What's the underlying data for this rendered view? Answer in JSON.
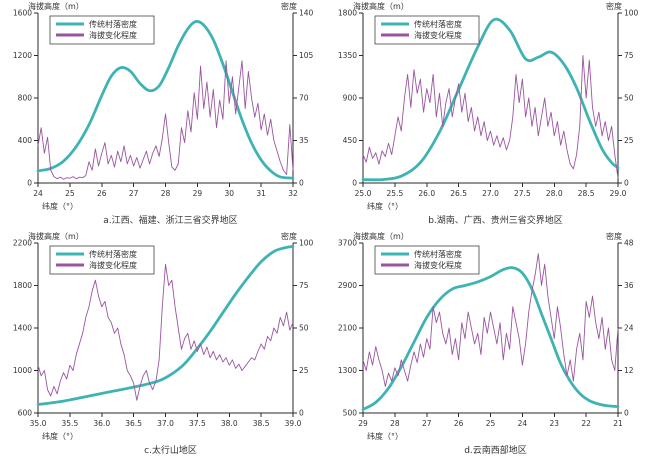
{
  "figure": {
    "background": "#ffffff"
  },
  "colors": {
    "density_line": "#3fb3b4",
    "relief_line": "#9a55a0",
    "axis": "#2a2a2a",
    "text": "#333333",
    "legend_border": "#444444"
  },
  "legend": {
    "density_label": "传统村落密度",
    "relief_label": "海拔变化程度"
  },
  "axis_titles": {
    "left": "海拔高度（m）",
    "right": "密度",
    "x": "纬度（°）"
  },
  "chart_data": [
    {
      "type": "line",
      "caption": "a.江西、福建、浙江三省交界地区",
      "x_axis": {
        "label": "纬度（°）",
        "left_value": 24,
        "right_value": 32,
        "tick_values": [
          24,
          25,
          26,
          27,
          28,
          29,
          30,
          31,
          32
        ],
        "tick_labels": [
          "24",
          "25",
          "26",
          "27",
          "28",
          "29",
          "30",
          "31",
          "32"
        ]
      },
      "left_axis": {
        "label": "海拔高度（m）",
        "min": 0,
        "max": 1600,
        "tick_values": [
          0,
          400,
          800,
          1200,
          1600
        ],
        "tick_labels": [
          "0",
          "400",
          "800",
          "1200",
          "1600"
        ]
      },
      "right_axis": {
        "label": "密度",
        "min": 0,
        "max": 140,
        "tick_values": [
          0,
          35,
          70,
          105,
          140
        ],
        "tick_labels": [
          "0",
          "35",
          "70",
          "105",
          "140"
        ]
      },
      "series": [
        {
          "name": "传统村落密度",
          "axis": "right",
          "style": "smooth",
          "color_key": "density_line",
          "points": [
            [
              24,
              10
            ],
            [
              24.4,
              12
            ],
            [
              24.8,
              18
            ],
            [
              25.2,
              30
            ],
            [
              25.6,
              48
            ],
            [
              26,
              72
            ],
            [
              26.3,
              88
            ],
            [
              26.6,
              95
            ],
            [
              26.9,
              92
            ],
            [
              27.2,
              82
            ],
            [
              27.5,
              76
            ],
            [
              27.8,
              80
            ],
            [
              28.1,
              95
            ],
            [
              28.4,
              113
            ],
            [
              28.7,
              127
            ],
            [
              28.95,
              133
            ],
            [
              29.2,
              130
            ],
            [
              29.5,
              118
            ],
            [
              29.8,
              98
            ],
            [
              30.1,
              75
            ],
            [
              30.4,
              52
            ],
            [
              30.7,
              33
            ],
            [
              31,
              19
            ],
            [
              31.3,
              10
            ],
            [
              31.6,
              5
            ],
            [
              32,
              4
            ]
          ]
        },
        {
          "name": "海拔变化程度",
          "axis": "left",
          "style": "noisy",
          "color_key": "relief_line",
          "x_start": 24,
          "x_step": 0.1,
          "values": [
            350,
            520,
            280,
            430,
            120,
            60,
            40,
            55,
            35,
            50,
            45,
            60,
            40,
            55,
            50,
            70,
            200,
            120,
            320,
            160,
            280,
            380,
            180,
            260,
            150,
            300,
            200,
            350,
            180,
            260,
            160,
            240,
            140,
            220,
            300,
            180,
            280,
            350,
            250,
            420,
            650,
            380,
            150,
            120,
            180,
            520,
            380,
            680,
            480,
            850,
            600,
            1100,
            700,
            950,
            620,
            880,
            520,
            780,
            600,
            1150,
            750,
            1000,
            650,
            900,
            1150,
            700,
            1050,
            800,
            620,
            750,
            500,
            650,
            450,
            600,
            400,
            300,
            200,
            120,
            80,
            550,
            120
          ]
        }
      ]
    },
    {
      "type": "line",
      "caption": "b.湖南、广西、贵州三省交界地区",
      "x_axis": {
        "label": "纬度（°）",
        "left_value": 25,
        "right_value": 29,
        "tick_values": [
          25,
          25.5,
          26,
          26.5,
          27,
          27.5,
          28,
          28.5,
          29
        ],
        "tick_labels": [
          "25.0",
          "25.5",
          "26.0",
          "26.5",
          "27.0",
          "27.5",
          "28.0",
          "28.5",
          "29.0"
        ]
      },
      "left_axis": {
        "label": "海拔高度（m）",
        "min": 0,
        "max": 1800,
        "tick_values": [
          0,
          450,
          900,
          1350,
          1800
        ],
        "tick_labels": [
          "0",
          "450",
          "900",
          "1350",
          "1800"
        ]
      },
      "right_axis": {
        "label": "密度",
        "min": 0,
        "max": 100,
        "tick_values": [
          0,
          25,
          50,
          75,
          100
        ],
        "tick_labels": [
          "0",
          "25",
          "50",
          "75",
          "100"
        ]
      },
      "series": [
        {
          "name": "传统村落密度",
          "axis": "right",
          "style": "smooth",
          "color_key": "density_line",
          "points": [
            [
              25,
              2
            ],
            [
              25.3,
              2
            ],
            [
              25.6,
              4
            ],
            [
              25.9,
              12
            ],
            [
              26.2,
              30
            ],
            [
              26.5,
              55
            ],
            [
              26.8,
              80
            ],
            [
              27.05,
              96
            ],
            [
              27.3,
              90
            ],
            [
              27.55,
              73
            ],
            [
              27.75,
              74
            ],
            [
              27.95,
              77
            ],
            [
              28.15,
              70
            ],
            [
              28.35,
              56
            ],
            [
              28.55,
              37
            ],
            [
              28.75,
              20
            ],
            [
              28.9,
              12
            ],
            [
              29,
              9
            ]
          ]
        },
        {
          "name": "海拔变化程度",
          "axis": "left",
          "style": "noisy",
          "color_key": "relief_line",
          "x_start": 25,
          "x_step": 0.05,
          "values": [
            300,
            220,
            380,
            260,
            320,
            200,
            340,
            280,
            420,
            300,
            500,
            700,
            550,
            900,
            1150,
            800,
            1200,
            950,
            1100,
            750,
            1000,
            850,
            1150,
            700,
            950,
            600,
            850,
            1000,
            700,
            900,
            1050,
            750,
            950,
            650,
            800,
            550,
            700,
            500,
            650,
            450,
            550,
            400,
            500,
            380,
            480,
            350,
            450,
            700,
            1150,
            850,
            1100,
            700,
            900,
            600,
            800,
            500,
            700,
            900,
            600,
            750,
            500,
            650,
            400,
            550,
            350,
            200,
            150,
            300,
            600,
            1350,
            900,
            1300,
            800,
            600,
            750,
            500,
            650,
            450,
            600,
            300,
            50
          ]
        }
      ]
    },
    {
      "type": "line",
      "caption": "c.太行山地区",
      "x_axis": {
        "label": "纬度（°）",
        "left_value": 35,
        "right_value": 39,
        "tick_values": [
          35,
          35.5,
          36,
          36.5,
          37,
          37.5,
          38,
          38.5,
          39
        ],
        "tick_labels": [
          "35.0",
          "35.5",
          "36.0",
          "36.5",
          "37.0",
          "37.5",
          "38.0",
          "38.5",
          "39.0"
        ]
      },
      "left_axis": {
        "label": "海拔高度（m）",
        "min": 600,
        "max": 2200,
        "tick_values": [
          600,
          1000,
          1400,
          1800,
          2200
        ],
        "tick_labels": [
          "600",
          "1000",
          "1400",
          "1800",
          "2200"
        ]
      },
      "right_axis": {
        "label": "密度",
        "min": 0,
        "max": 100,
        "tick_values": [
          0,
          25,
          50,
          75,
          100
        ],
        "tick_labels": [
          "0",
          "25",
          "50",
          "75",
          "100"
        ]
      },
      "series": [
        {
          "name": "传统村落密度",
          "axis": "right",
          "style": "smooth",
          "color_key": "density_line",
          "points": [
            [
              35,
              5
            ],
            [
              35.4,
              7
            ],
            [
              35.8,
              10
            ],
            [
              36.2,
              13
            ],
            [
              36.6,
              16
            ],
            [
              36.9,
              19
            ],
            [
              37.1,
              23
            ],
            [
              37.3,
              29
            ],
            [
              37.5,
              38
            ],
            [
              37.7,
              48
            ],
            [
              37.9,
              59
            ],
            [
              38.1,
              70
            ],
            [
              38.3,
              80
            ],
            [
              38.5,
              89
            ],
            [
              38.7,
              95
            ],
            [
              38.85,
              97
            ],
            [
              39,
              98
            ]
          ]
        },
        {
          "name": "海拔变化程度",
          "axis": "left",
          "style": "noisy",
          "color_key": "relief_line",
          "x_start": 35,
          "x_step": 0.05,
          "values": [
            1050,
            950,
            1000,
            820,
            760,
            850,
            780,
            900,
            980,
            920,
            1050,
            1000,
            1150,
            1250,
            1350,
            1500,
            1600,
            1750,
            1850,
            1700,
            1600,
            1650,
            1500,
            1450,
            1350,
            1400,
            1250,
            1150,
            1000,
            950,
            880,
            720,
            850,
            950,
            1000,
            880,
            820,
            900,
            1100,
            1600,
            2000,
            1800,
            1850,
            1600,
            1400,
            1200,
            1300,
            1350,
            1200,
            1280,
            1180,
            1250,
            1150,
            1220,
            1120,
            1180,
            1100,
            1150,
            1080,
            1120,
            1050,
            1100,
            1020,
            1060,
            1000,
            1040,
            1080,
            1120,
            1100,
            1180,
            1250,
            1200,
            1320,
            1280,
            1400,
            1350,
            1500,
            1420,
            1550,
            1380,
            1450
          ]
        }
      ]
    },
    {
      "type": "line",
      "caption": "d.云南西部地区",
      "x_axis": {
        "label": "纬度（°）",
        "left_value": 29,
        "right_value": 21,
        "tick_values": [
          29,
          28,
          27,
          26,
          25,
          24,
          23,
          22,
          21
        ],
        "tick_labels": [
          "29",
          "28",
          "27",
          "26",
          "25",
          "24",
          "23",
          "22",
          "21"
        ]
      },
      "left_axis": {
        "label": "海拔高度（m）",
        "min": 500,
        "max": 3700,
        "tick_values": [
          500,
          1300,
          2100,
          2900,
          3700
        ],
        "tick_labels": [
          "500",
          "1300",
          "2100",
          "2900",
          "3700"
        ]
      },
      "right_axis": {
        "label": "密度",
        "min": 0,
        "max": 48,
        "tick_values": [
          0,
          12,
          24,
          36,
          48
        ],
        "tick_labels": [
          "0",
          "12",
          "24",
          "36",
          "48"
        ]
      },
      "series": [
        {
          "name": "传统村落密度",
          "axis": "right",
          "style": "smooth",
          "color_key": "density_line",
          "points": [
            [
              29,
              1
            ],
            [
              28.6,
              3
            ],
            [
              28.2,
              7
            ],
            [
              27.8,
              13
            ],
            [
              27.4,
              20
            ],
            [
              27,
              27
            ],
            [
              26.6,
              32
            ],
            [
              26.2,
              35
            ],
            [
              25.8,
              36
            ],
            [
              25.4,
              37
            ],
            [
              25,
              38.5
            ],
            [
              24.6,
              40.5
            ],
            [
              24.3,
              41
            ],
            [
              24,
              39.5
            ],
            [
              23.7,
              35
            ],
            [
              23.4,
              28
            ],
            [
              23.1,
              21
            ],
            [
              22.8,
              14
            ],
            [
              22.5,
              9
            ],
            [
              22.2,
              5.5
            ],
            [
              21.9,
              3.5
            ],
            [
              21.6,
              2.5
            ],
            [
              21.3,
              2
            ],
            [
              21,
              1.8
            ]
          ]
        },
        {
          "name": "海拔变化程度",
          "axis": "left",
          "style": "noisy",
          "color_key": "relief_line",
          "x_start": 29,
          "x_step": -0.1,
          "values": [
            1500,
            1300,
            1650,
            1400,
            1750,
            1500,
            1300,
            1000,
            1250,
            1100,
            1350,
            1200,
            1500,
            1300,
            1100,
            1400,
            1650,
            1450,
            1800,
            1550,
            1900,
            1700,
            2500,
            2200,
            2400,
            2000,
            1800,
            2100,
            1600,
            1900,
            1500,
            2200,
            1900,
            2400,
            2100,
            1800,
            2000,
            1600,
            2300,
            2000,
            2400,
            2100,
            1800,
            2200,
            1500,
            2000,
            1700,
            2500,
            2200,
            1900,
            1400,
            1800,
            2400,
            2800,
            3100,
            3500,
            2900,
            3300,
            2700,
            2300,
            1900,
            2500,
            2100,
            1600,
            1200,
            1500,
            1100,
            1700,
            2000,
            1500,
            2600,
            2300,
            2700,
            2200,
            1900,
            2300,
            1700,
            2100,
            1500,
            1300,
            2100
          ]
        }
      ]
    }
  ]
}
